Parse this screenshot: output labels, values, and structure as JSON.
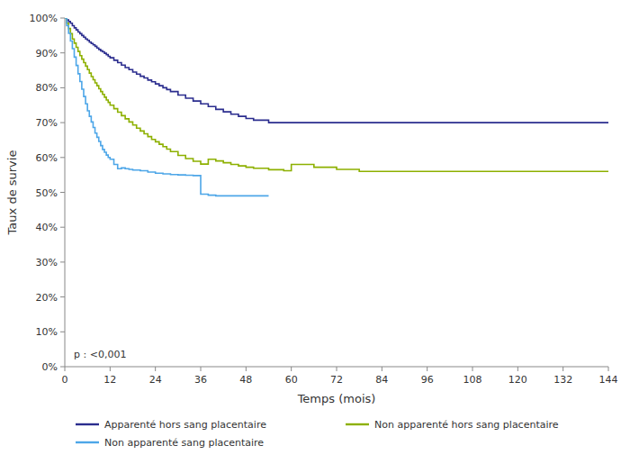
{
  "chart_data": {
    "type": "step",
    "title": "",
    "xlabel": "Temps (mois)",
    "ylabel": "Taux de survie",
    "annotation": "p : <0,001",
    "xlim": [
      0,
      144
    ],
    "ylim": [
      0,
      1
    ],
    "xticks": [
      0,
      12,
      24,
      36,
      48,
      60,
      72,
      84,
      96,
      108,
      120,
      132,
      144
    ],
    "yticks": [
      {
        "value": 0,
        "label": "0%"
      },
      {
        "value": 0.1,
        "label": "10%"
      },
      {
        "value": 0.2,
        "label": "20%"
      },
      {
        "value": 0.3,
        "label": "30%"
      },
      {
        "value": 0.4,
        "label": "40%"
      },
      {
        "value": 0.5,
        "label": "50%"
      },
      {
        "value": 0.6,
        "label": "60%"
      },
      {
        "value": 0.7,
        "label": "70%"
      },
      {
        "value": 0.8,
        "label": "80%"
      },
      {
        "value": 0.9,
        "label": "90%"
      },
      {
        "value": 1.0,
        "label": "100%"
      }
    ],
    "grid": false,
    "legend": "bottom",
    "series": [
      {
        "name": "Apparenté hors sang placentaire",
        "color": "#2b2d8e",
        "x": [
          0,
          0.5,
          1,
          1.5,
          2,
          2.5,
          3,
          3.5,
          4,
          4.5,
          5,
          5.5,
          6,
          6.5,
          7,
          7.5,
          8,
          8.5,
          9,
          9.5,
          10,
          10.5,
          11,
          11.5,
          12,
          13,
          14,
          15,
          16,
          17,
          18,
          19,
          20,
          21,
          22,
          23,
          24,
          25,
          26,
          27,
          28,
          30,
          32,
          34,
          36,
          38,
          40,
          42,
          44,
          46,
          48,
          50,
          54,
          60,
          66,
          72,
          78,
          84,
          144
        ],
        "values": [
          1.0,
          0.995,
          0.99,
          0.985,
          0.978,
          0.972,
          0.966,
          0.96,
          0.955,
          0.95,
          0.945,
          0.94,
          0.936,
          0.931,
          0.927,
          0.923,
          0.919,
          0.914,
          0.91,
          0.906,
          0.903,
          0.899,
          0.895,
          0.89,
          0.886,
          0.879,
          0.872,
          0.865,
          0.858,
          0.852,
          0.845,
          0.839,
          0.833,
          0.828,
          0.822,
          0.817,
          0.811,
          0.806,
          0.8,
          0.795,
          0.789,
          0.779,
          0.77,
          0.762,
          0.754,
          0.746,
          0.738,
          0.731,
          0.724,
          0.718,
          0.712,
          0.707,
          0.7,
          0.7,
          0.7,
          0.7,
          0.7,
          0.7,
          0.7
        ]
      },
      {
        "name": "Non apparenté hors sang placentaire",
        "color": "#8db000",
        "x": [
          0,
          0.5,
          1,
          1.5,
          2,
          2.5,
          3,
          3.5,
          4,
          4.5,
          5,
          5.5,
          6,
          6.5,
          7,
          7.5,
          8,
          8.5,
          9,
          9.5,
          10,
          10.5,
          11,
          11.5,
          12,
          13,
          14,
          15,
          16,
          17,
          18,
          19,
          20,
          21,
          22,
          23,
          24,
          25,
          26,
          27,
          28,
          30,
          32,
          34,
          36,
          38,
          40,
          42,
          44,
          46,
          48,
          50,
          54,
          58,
          60,
          66,
          72,
          78,
          84,
          144
        ],
        "values": [
          1.0,
          0.985,
          0.97,
          0.955,
          0.94,
          0.928,
          0.916,
          0.904,
          0.892,
          0.882,
          0.872,
          0.862,
          0.852,
          0.842,
          0.832,
          0.823,
          0.814,
          0.806,
          0.797,
          0.789,
          0.781,
          0.773,
          0.765,
          0.758,
          0.75,
          0.74,
          0.73,
          0.72,
          0.711,
          0.702,
          0.693,
          0.684,
          0.676,
          0.668,
          0.66,
          0.652,
          0.645,
          0.638,
          0.631,
          0.624,
          0.617,
          0.606,
          0.597,
          0.589,
          0.581,
          0.595,
          0.59,
          0.585,
          0.58,
          0.576,
          0.572,
          0.569,
          0.565,
          0.562,
          0.58,
          0.572,
          0.566,
          0.56,
          0.56,
          0.56
        ]
      },
      {
        "name": "Non apparenté sang placentaire",
        "color": "#4da6e8",
        "x": [
          0,
          0.5,
          1,
          1.5,
          2,
          2.5,
          3,
          3.5,
          4,
          4.5,
          5,
          5.5,
          6,
          6.5,
          7,
          7.5,
          8,
          8.5,
          9,
          9.5,
          10,
          10.5,
          11,
          11.5,
          12,
          13,
          14,
          15,
          16,
          17,
          18,
          20,
          22,
          24,
          26,
          28,
          30,
          32,
          34,
          36,
          38,
          40,
          42,
          44,
          46,
          48,
          54
        ],
        "values": [
          1.0,
          0.978,
          0.956,
          0.934,
          0.912,
          0.888,
          0.864,
          0.84,
          0.818,
          0.796,
          0.775,
          0.754,
          0.734,
          0.718,
          0.702,
          0.686,
          0.67,
          0.658,
          0.646,
          0.634,
          0.623,
          0.615,
          0.607,
          0.6,
          0.595,
          0.58,
          0.568,
          0.57,
          0.568,
          0.566,
          0.564,
          0.562,
          0.558,
          0.555,
          0.553,
          0.551,
          0.55,
          0.549,
          0.548,
          0.495,
          0.492,
          0.49,
          0.49,
          0.49,
          0.49,
          0.49,
          0.49
        ]
      }
    ]
  }
}
